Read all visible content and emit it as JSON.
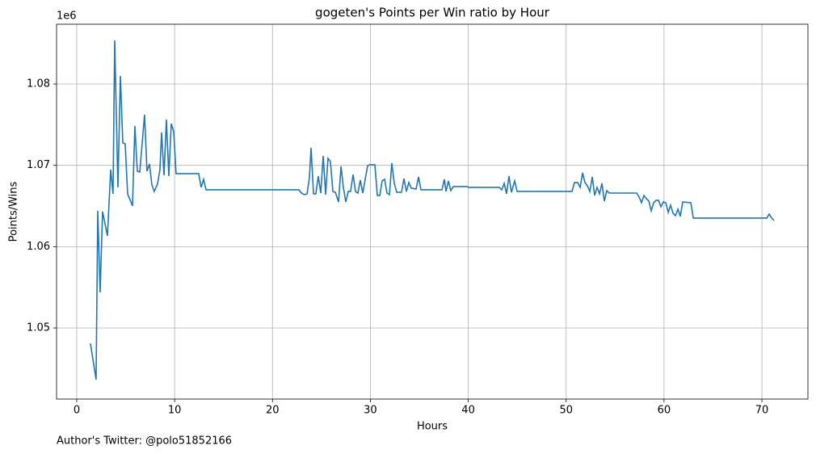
{
  "chart_data": {
    "type": "line",
    "title": "gogeten's Points per Win ratio by Hour",
    "xlabel": "Hours",
    "ylabel": "Points/Wins",
    "y_offset_label": "1e6",
    "footnote": "Author's Twitter: @polo51852166",
    "color": "#1f77b4",
    "grid": true,
    "xlim": [
      -2.06,
      74.7
    ],
    "ylim": [
      1041260,
      1087350
    ],
    "xticks": [
      0,
      10,
      20,
      30,
      40,
      50,
      60,
      70
    ],
    "yticks": [
      {
        "value": 1050000,
        "label": "1.05"
      },
      {
        "value": 1060000,
        "label": "1.06"
      },
      {
        "value": 1070000,
        "label": "1.07"
      },
      {
        "value": 1080000,
        "label": "1.08"
      }
    ],
    "x": [
      1.4,
      1.98,
      2.15,
      2.39,
      2.64,
      3.14,
      3.47,
      3.71,
      3.88,
      4.21,
      4.46,
      4.71,
      4.95,
      5.2,
      5.7,
      5.94,
      6.19,
      6.44,
      6.93,
      7.18,
      7.43,
      7.68,
      7.92,
      8.25,
      8.5,
      8.67,
      8.92,
      9.16,
      9.41,
      9.66,
      9.91,
      10.15,
      12.46,
      12.71,
      12.96,
      13.21,
      22.7,
      22.95,
      23.28,
      23.53,
      23.77,
      23.94,
      24.19,
      24.43,
      24.68,
      24.93,
      25.18,
      25.43,
      25.67,
      25.92,
      26.17,
      26.42,
      26.75,
      27.0,
      27.24,
      27.49,
      27.74,
      27.98,
      28.23,
      28.48,
      28.73,
      28.97,
      29.22,
      29.47,
      29.72,
      29.97,
      30.46,
      30.71,
      30.96,
      31.2,
      31.45,
      31.7,
      31.95,
      32.19,
      32.44,
      32.69,
      33.18,
      33.43,
      33.68,
      33.93,
      34.18,
      34.67,
      34.92,
      35.17,
      37.31,
      37.56,
      37.73,
      37.97,
      38.22,
      38.47,
      39.87,
      40.04,
      43.17,
      43.42,
      43.67,
      43.91,
      44.16,
      44.41,
      44.74,
      44.99,
      50.6,
      50.85,
      51.18,
      51.43,
      51.68,
      51.92,
      52.17,
      52.42,
      52.67,
      52.91,
      53.16,
      53.41,
      53.66,
      53.9,
      54.15,
      54.4,
      57.21,
      57.46,
      57.7,
      57.95,
      58.2,
      58.45,
      58.69,
      58.94,
      59.19,
      59.44,
      59.68,
      59.93,
      60.18,
      60.43,
      60.67,
      60.92,
      61.17,
      61.42,
      61.66,
      61.91,
      62.74,
      62.99,
      70.5,
      70.74,
      70.99,
      71.24
    ],
    "values": [
      1048100,
      1043660,
      1064410,
      1054380,
      1064310,
      1061330,
      1069470,
      1066500,
      1085360,
      1067290,
      1080990,
      1072750,
      1072650,
      1066500,
      1065010,
      1074840,
      1069280,
      1069180,
      1076230,
      1069280,
      1070170,
      1067590,
      1066790,
      1067690,
      1069470,
      1074040,
      1068780,
      1075630,
      1068680,
      1075130,
      1074140,
      1068980,
      1068980,
      1067290,
      1068280,
      1066990,
      1066990,
      1066590,
      1066400,
      1066500,
      1068480,
      1072160,
      1066500,
      1066500,
      1068680,
      1066590,
      1071160,
      1066400,
      1070860,
      1070470,
      1066790,
      1066690,
      1065500,
      1069870,
      1067290,
      1065500,
      1066790,
      1066790,
      1068880,
      1066790,
      1066590,
      1068180,
      1066590,
      1068280,
      1069970,
      1070070,
      1070070,
      1066300,
      1066300,
      1068080,
      1068280,
      1066590,
      1066400,
      1070270,
      1067790,
      1066690,
      1066690,
      1068380,
      1066790,
      1067890,
      1067190,
      1067090,
      1068580,
      1066990,
      1066990,
      1068280,
      1066790,
      1068080,
      1066890,
      1067390,
      1067390,
      1067290,
      1067290,
      1066990,
      1067790,
      1066500,
      1068680,
      1066690,
      1068080,
      1066790,
      1066790,
      1067890,
      1067890,
      1067290,
      1069080,
      1067890,
      1067490,
      1066790,
      1068580,
      1066300,
      1067290,
      1066500,
      1067790,
      1065600,
      1066890,
      1066590,
      1066590,
      1066100,
      1065400,
      1066300,
      1065900,
      1065600,
      1064410,
      1065400,
      1065700,
      1065700,
      1064910,
      1065500,
      1065400,
      1064210,
      1065110,
      1064110,
      1063810,
      1064610,
      1063720,
      1065500,
      1065400,
      1063520,
      1063520,
      1064010,
      1063520,
      1063220
    ]
  }
}
